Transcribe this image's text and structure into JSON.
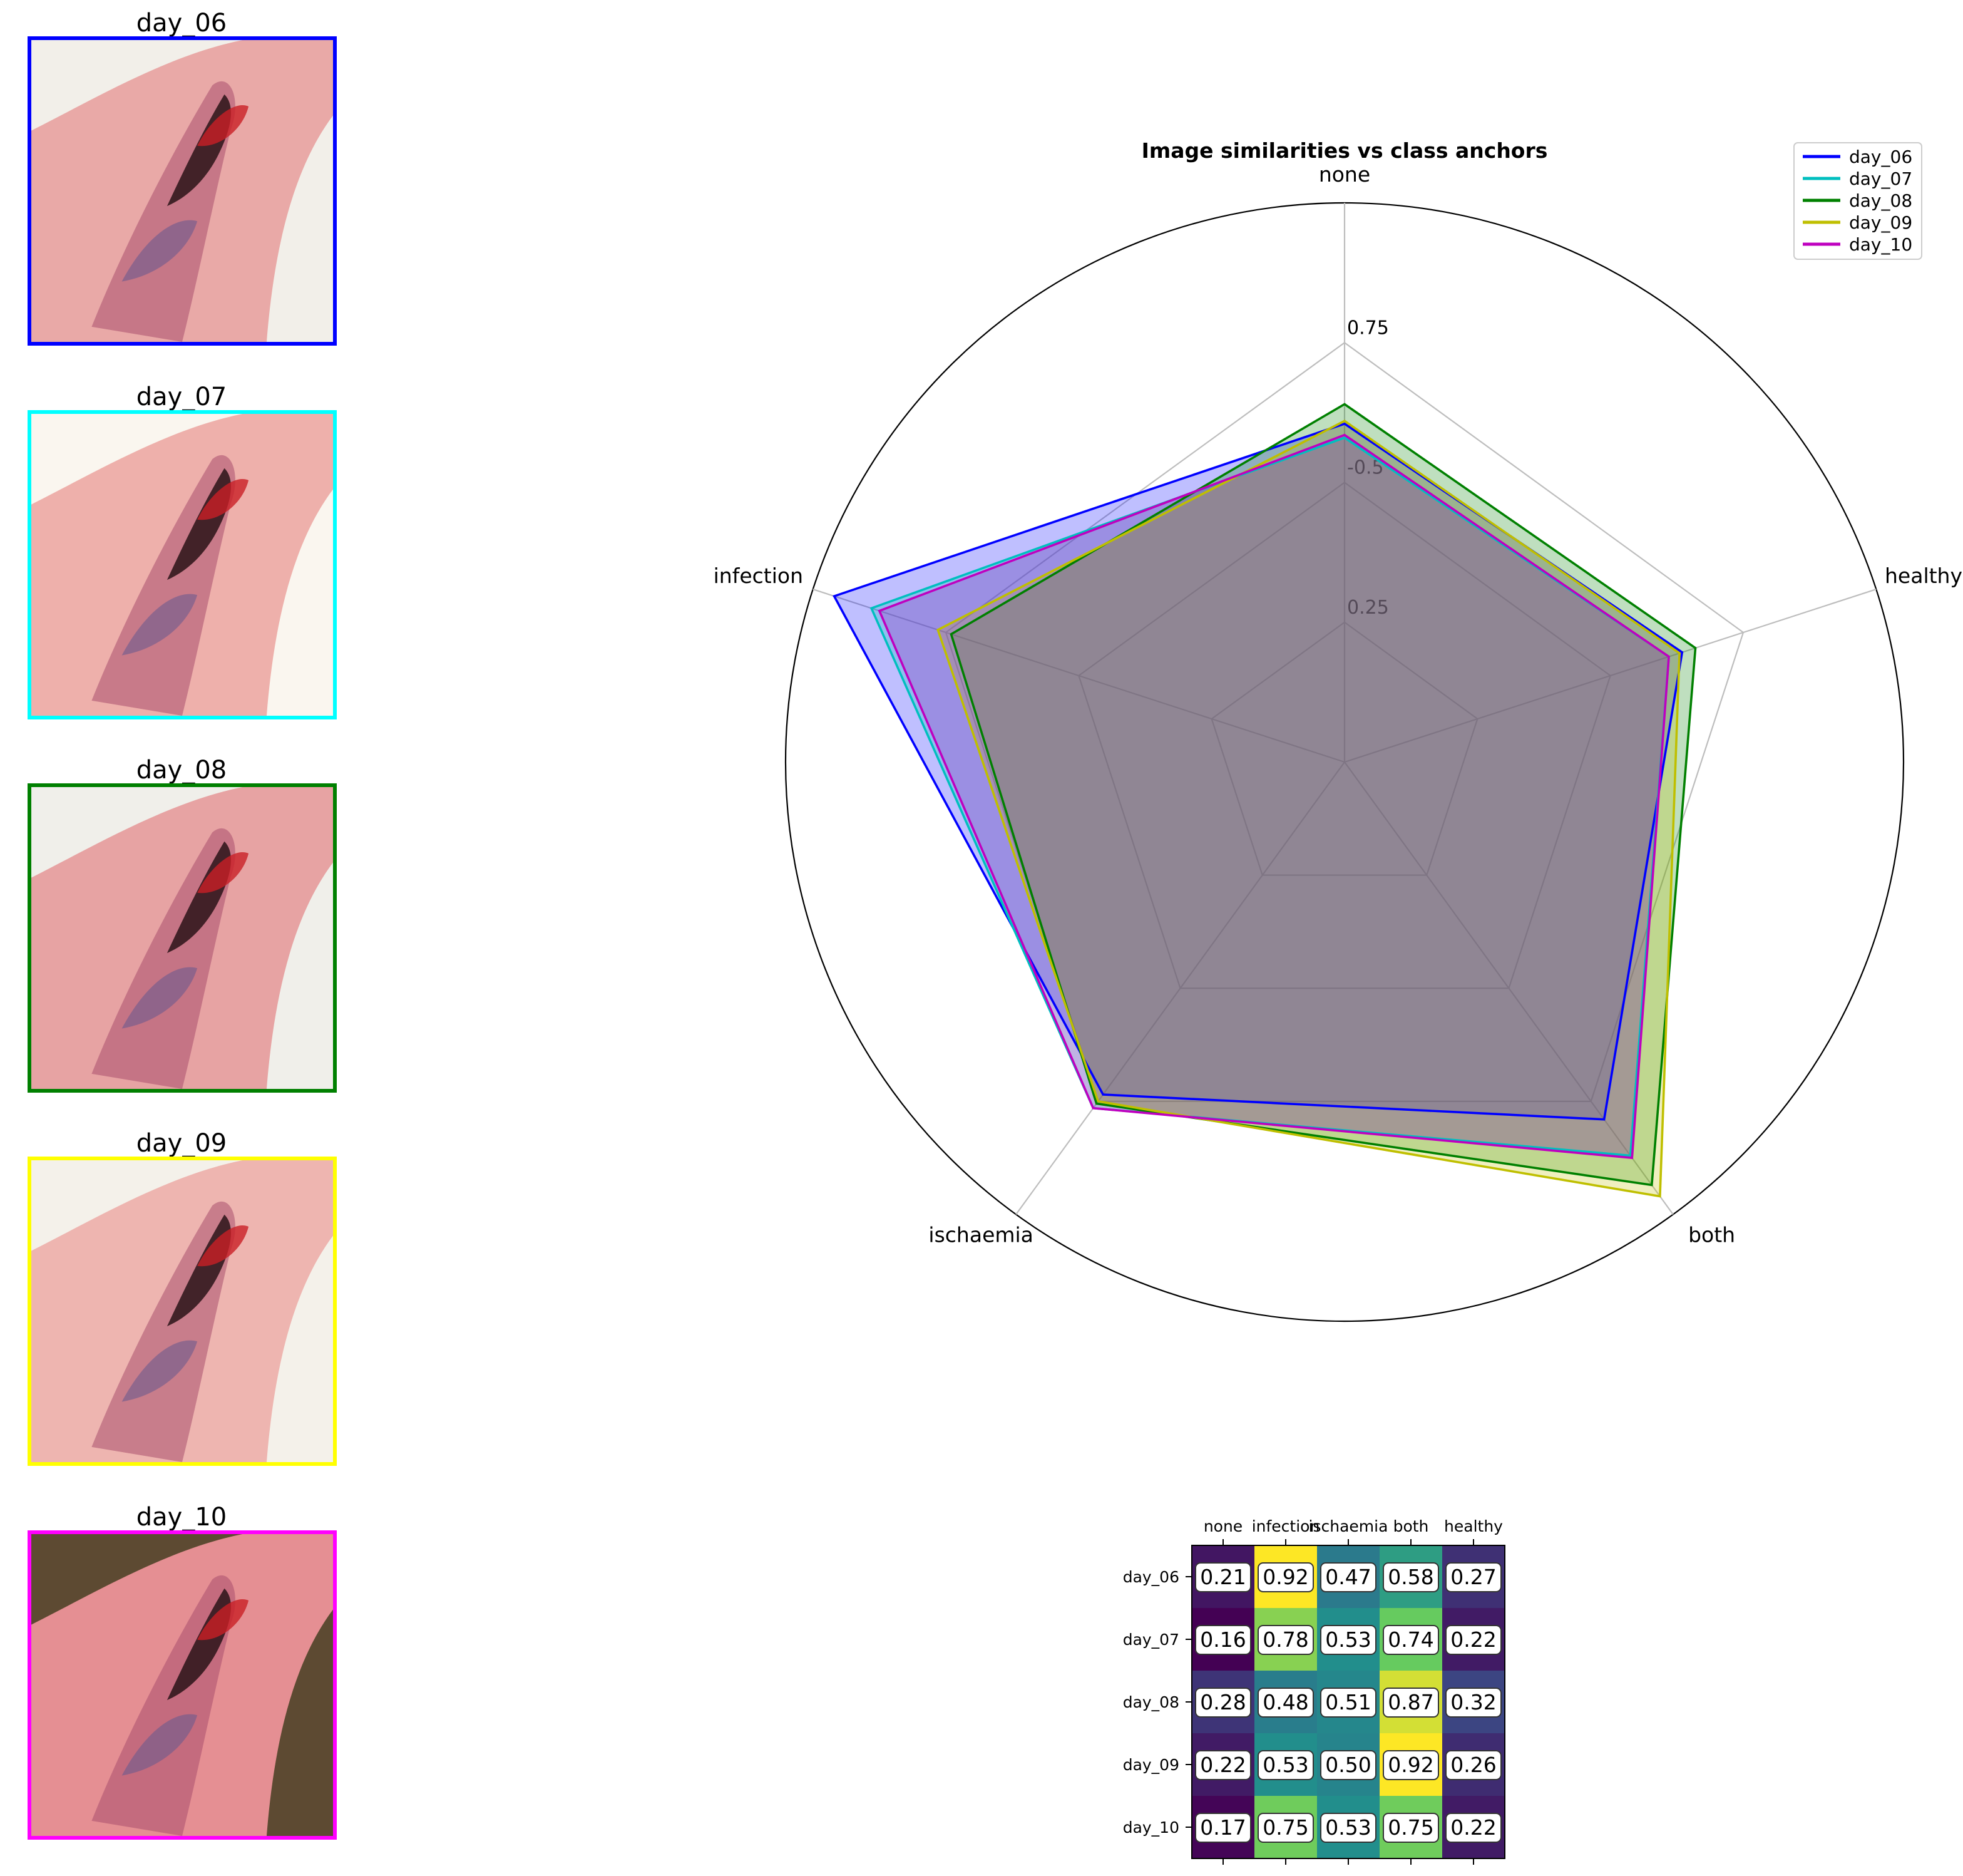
{
  "thumbnails": [
    {
      "title": "day_06",
      "color": "#0000ff",
      "image": "wound-photo"
    },
    {
      "title": "day_07",
      "color": "#00ffff",
      "image": "wound-photo"
    },
    {
      "title": "day_08",
      "color": "#008000",
      "image": "wound-photo"
    },
    {
      "title": "day_09",
      "color": "#ffff00",
      "image": "wound-photo"
    },
    {
      "title": "day_10",
      "color": "#ff00ff",
      "image": "wound-photo"
    }
  ],
  "chart_data": [
    {
      "type": "radar",
      "title": "Image similarities vs class anchors",
      "axes": [
        "none",
        "healthy",
        "both",
        "ischaemia",
        "infection"
      ],
      "tick_labels": [
        "0.25",
        "-0.5",
        "0.75"
      ],
      "legend_placement": "top-right",
      "series": [
        {
          "name": "day_06",
          "color": "#0000ff",
          "values": [
            0.21,
            0.27,
            0.58,
            0.47,
            0.92
          ]
        },
        {
          "name": "day_07",
          "color": "#00bfbf",
          "values": [
            0.16,
            0.22,
            0.74,
            0.53,
            0.78
          ]
        },
        {
          "name": "day_08",
          "color": "#008000",
          "values": [
            0.28,
            0.32,
            0.87,
            0.51,
            0.48
          ]
        },
        {
          "name": "day_09",
          "color": "#bfbf00",
          "values": [
            0.22,
            0.26,
            0.92,
            0.5,
            0.53
          ]
        },
        {
          "name": "day_10",
          "color": "#bf00bf",
          "values": [
            0.17,
            0.22,
            0.75,
            0.53,
            0.75
          ]
        }
      ]
    },
    {
      "type": "heatmap",
      "columns": [
        "none",
        "infection",
        "ischaemia",
        "both",
        "healthy"
      ],
      "rows": [
        "day_06",
        "day_07",
        "day_08",
        "day_09",
        "day_10"
      ],
      "values": [
        [
          0.21,
          0.92,
          0.47,
          0.58,
          0.27
        ],
        [
          0.16,
          0.78,
          0.53,
          0.74,
          0.22
        ],
        [
          0.28,
          0.48,
          0.51,
          0.87,
          0.32
        ],
        [
          0.22,
          0.53,
          0.5,
          0.92,
          0.26
        ],
        [
          0.17,
          0.75,
          0.53,
          0.75,
          0.22
        ]
      ],
      "labels": [
        [
          "0.21",
          "0.92",
          "0.47",
          "0.58",
          "0.27"
        ],
        [
          "0.16",
          "0.78",
          "0.53",
          "0.74",
          "0.22"
        ],
        [
          "0.28",
          "0.48",
          "0.51",
          "0.87",
          "0.32"
        ],
        [
          "0.22",
          "0.53",
          "0.50",
          "0.92",
          "0.26"
        ],
        [
          "0.17",
          "0.75",
          "0.53",
          "0.75",
          "0.22"
        ]
      ],
      "colormap": "viridis"
    }
  ]
}
